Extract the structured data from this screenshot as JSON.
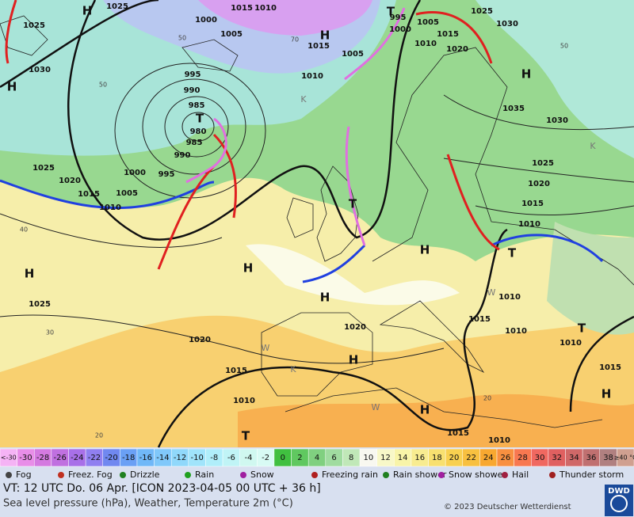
{
  "map": {
    "pressure_labels": [
      1025,
      1010,
      1015,
      1025,
      1000,
      1005,
      1015,
      995,
      1005,
      1015,
      1025,
      1030,
      1000,
      1010,
      1020,
      1030,
      1005,
      1010,
      995,
      990,
      985,
      980,
      985,
      990,
      995,
      1000,
      1005,
      1010,
      1015,
      1020,
      1025,
      1035,
      1030,
      1025,
      1020,
      1015,
      1010,
      1025,
      1020,
      1020,
      1015,
      1010,
      1015,
      1010,
      1010,
      1010,
      1015,
      1015,
      1010
    ],
    "thickness_labels": [
      50,
      70,
      50,
      50,
      40,
      30,
      20,
      20
    ],
    "centers": [
      "H",
      "H",
      "H",
      "H",
      "H",
      "H",
      "H",
      "H",
      "H",
      "H",
      "H",
      "T",
      "T",
      "T",
      "T",
      "T",
      "T"
    ],
    "minor_marks": [
      "K",
      "K",
      "K",
      "W",
      "W",
      "W"
    ]
  },
  "scale": {
    "below": "<-30",
    "values": [
      -30,
      -28,
      -26,
      -24,
      -22,
      -20,
      -18,
      -16,
      -14,
      -12,
      -10,
      -8,
      -6,
      -4,
      -2,
      0,
      2,
      4,
      6,
      8,
      10,
      12,
      14,
      16,
      18,
      20,
      22,
      24,
      26,
      28,
      30,
      32,
      34,
      36,
      38
    ],
    "above": "≥40 °C",
    "colors": [
      "#f5b3f5",
      "#e88ee8",
      "#d47ae0",
      "#c070e0",
      "#a870e8",
      "#9080f0",
      "#7088f0",
      "#6aa0f5",
      "#70b8f8",
      "#80c8fa",
      "#90d8fb",
      "#a0e4fb",
      "#b0eefa",
      "#c0f4f6",
      "#d0f8f0",
      "#d8fbf4",
      "#40c040",
      "#60c860",
      "#80d080",
      "#a0dca0",
      "#c0e8b8",
      "#f8f8f0",
      "#f8f8c8",
      "#f8f4a8",
      "#f8ec90",
      "#f8e070",
      "#f8d050",
      "#f8c040",
      "#f8a830",
      "#f89040",
      "#f87850",
      "#f06860",
      "#e06060",
      "#d06868",
      "#c07070",
      "#b08080",
      "#d0a090"
    ]
  },
  "legend": [
    "Fog",
    "Freez. Fog",
    "Drizzle",
    "Rain",
    "Snow",
    "Freezing rain",
    "Rain shower",
    "Snow shower",
    "Hail",
    "Thunder storm"
  ],
  "footer": {
    "valid_time": "VT: 12 UTC Do.  06 Apr. [ICON 2023-04-05  00 UTC + 36 h]",
    "description": "Sea level pressure (hPa), Weather, Temperature 2m (°C)",
    "copyright": "© 2023 Deutscher Wetterdienst",
    "logo": "DWD"
  }
}
